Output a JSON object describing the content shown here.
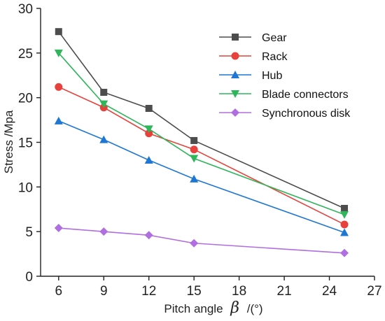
{
  "chart_data": {
    "type": "line",
    "xlabel_prefix": "Pitch angle",
    "xlabel_symbol": "β",
    "xlabel_suffix": "/(°)",
    "ylabel": "Stress /Mpa",
    "xlim": [
      4.8,
      27
    ],
    "ylim": [
      0,
      30
    ],
    "xticks": [
      6,
      9,
      12,
      15,
      18,
      21,
      24,
      27
    ],
    "yticks": [
      0,
      5,
      10,
      15,
      20,
      25,
      30
    ],
    "grid": false,
    "legend_position": "top-right",
    "x": [
      6,
      9,
      12,
      15,
      25
    ],
    "series": [
      {
        "name": "Gear",
        "values": [
          27.4,
          20.6,
          18.8,
          15.2,
          7.6
        ],
        "color": "#4d4d4d",
        "marker": "square"
      },
      {
        "name": "Rack",
        "values": [
          21.2,
          18.9,
          16.0,
          14.2,
          5.8
        ],
        "color": "#e8403a",
        "marker": "circle"
      },
      {
        "name": "Hub",
        "values": [
          17.4,
          15.3,
          13.0,
          10.9,
          4.9
        ],
        "color": "#1f77d4",
        "marker": "triangle-up"
      },
      {
        "name": "Blade connectors",
        "values": [
          25.0,
          19.3,
          16.5,
          13.2,
          6.9
        ],
        "color": "#2fb55a",
        "marker": "triangle-down"
      },
      {
        "name": "Synchronous disk",
        "values": [
          5.4,
          5.0,
          4.6,
          3.7,
          2.6
        ],
        "color": "#b06fe0",
        "marker": "diamond"
      }
    ]
  }
}
